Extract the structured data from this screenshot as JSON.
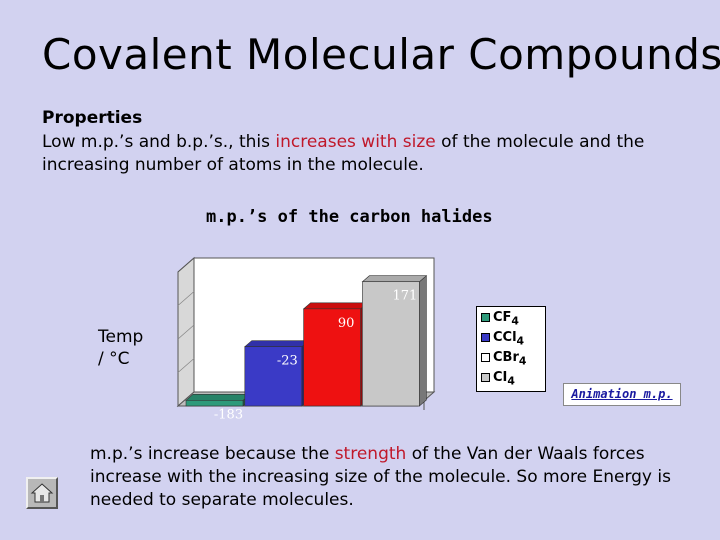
{
  "slide": {
    "title": "Covalent Molecular Compounds",
    "properties_heading": "Properties",
    "properties_text_1": "Low m.p.’s and b.p.’s., this ",
    "properties_highlight": "increases with size",
    "properties_text_2": " of the molecule and the increasing number of atoms in the molecule.",
    "explanation_text_1": "m.p.’s increase because the ",
    "explanation_highlight": "strength",
    "explanation_text_2": " of the Van der Waals forces increase with the increasing size of the molecule. So more Energy is needed to separate molecules.",
    "animation_button_label": "Animation m.p.",
    "home_button_icon": "home-icon",
    "highlight_color": "#c0182a",
    "background_color": "#d2d2f0"
  },
  "chart_data": {
    "type": "bar",
    "title": "m.p.’s of the carbon halides",
    "ylabel_line1": "Temp",
    "ylabel_line2": "/ °C",
    "categories": [
      "CF4",
      "CCl4",
      "CBr4",
      "CI4"
    ],
    "legend": [
      {
        "label": "CF",
        "sub": "4",
        "color": "#2e9a7a"
      },
      {
        "label": "CCl",
        "sub": "4",
        "color": "#3a3ac6"
      },
      {
        "label": "CBr",
        "sub": "4",
        "color": "#ffffff"
      },
      {
        "label": "CI",
        "sub": "4",
        "color": "#c8c8c8"
      }
    ],
    "values": [
      -183,
      -23,
      90,
      171
    ],
    "data_labels": [
      "-183",
      "-23",
      "90",
      "171"
    ],
    "colors": [
      "#2e9a7a",
      "#3a3ac6",
      "#ee1111",
      "#c8c8c8"
    ],
    "ylim": [
      -200,
      200
    ],
    "three_d": true,
    "grid": false,
    "legend_position": "right"
  }
}
